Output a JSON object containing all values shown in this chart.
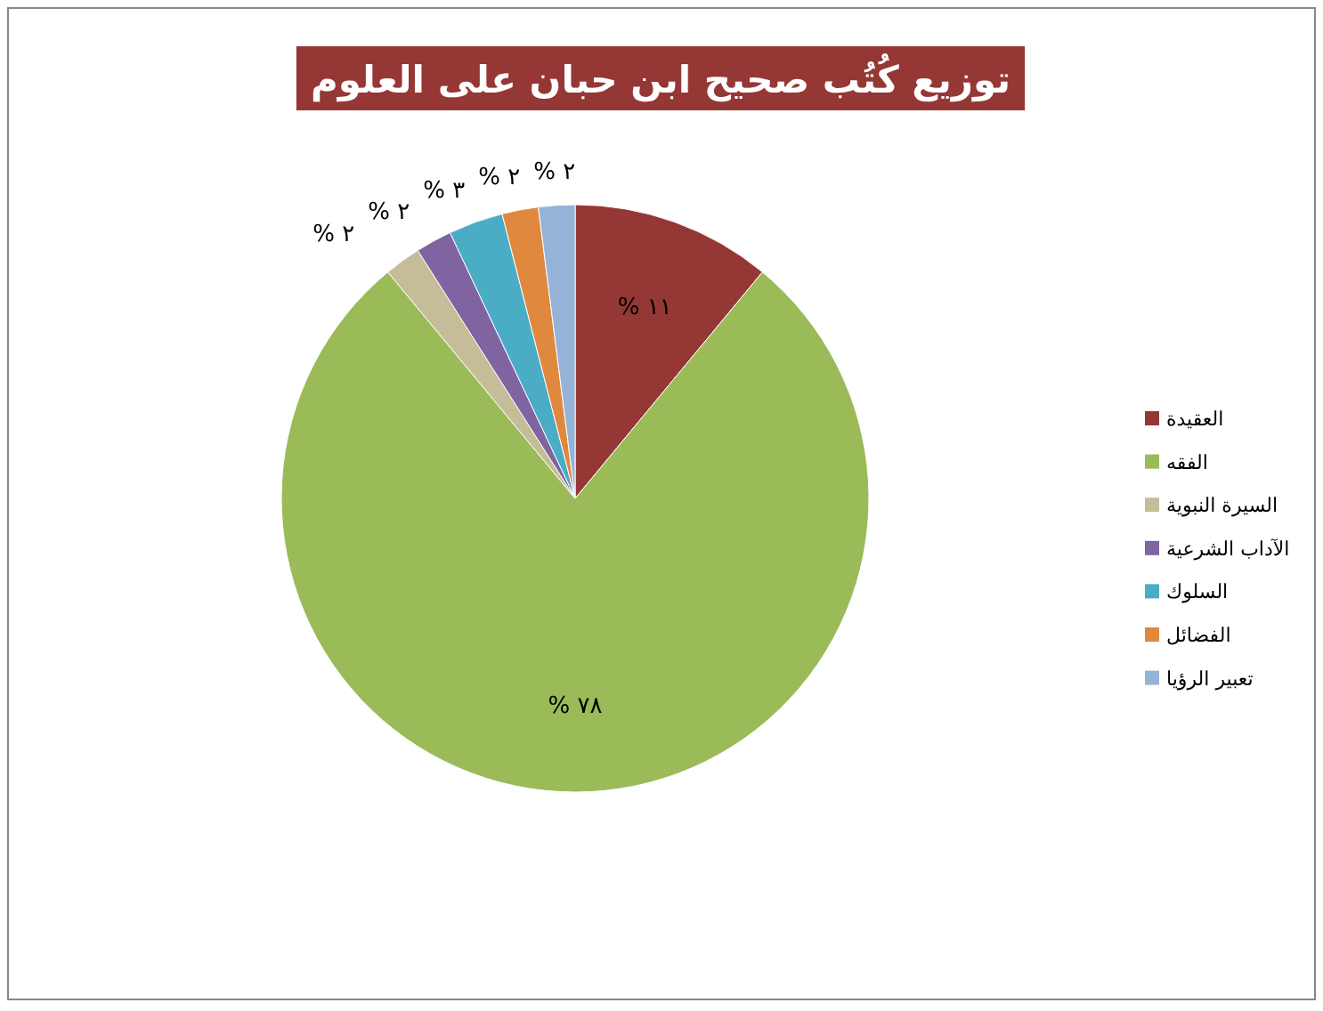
{
  "chart_data": {
    "type": "pie",
    "title": "توزيع كُتُب صحيح ابن حبان على العلوم",
    "categories": [
      "العقيدة",
      "الفقه",
      "السيرة النبوية",
      "الآداب الشرعية",
      "السلوك",
      "الفضائل",
      "تعبير الرؤيا"
    ],
    "values": [
      11,
      78,
      2,
      2,
      3,
      2,
      2
    ],
    "colors": [
      "#953735",
      "#9bbb59",
      "#c4bd97",
      "#8064a2",
      "#4bacc6",
      "#e0883e",
      "#95b3d7"
    ],
    "value_labels": [
      "% ١١",
      "% ٧٨",
      "% ٢",
      "% ٢",
      "% ٣",
      "% ٢",
      "% ٢"
    ],
    "legend": "right"
  }
}
